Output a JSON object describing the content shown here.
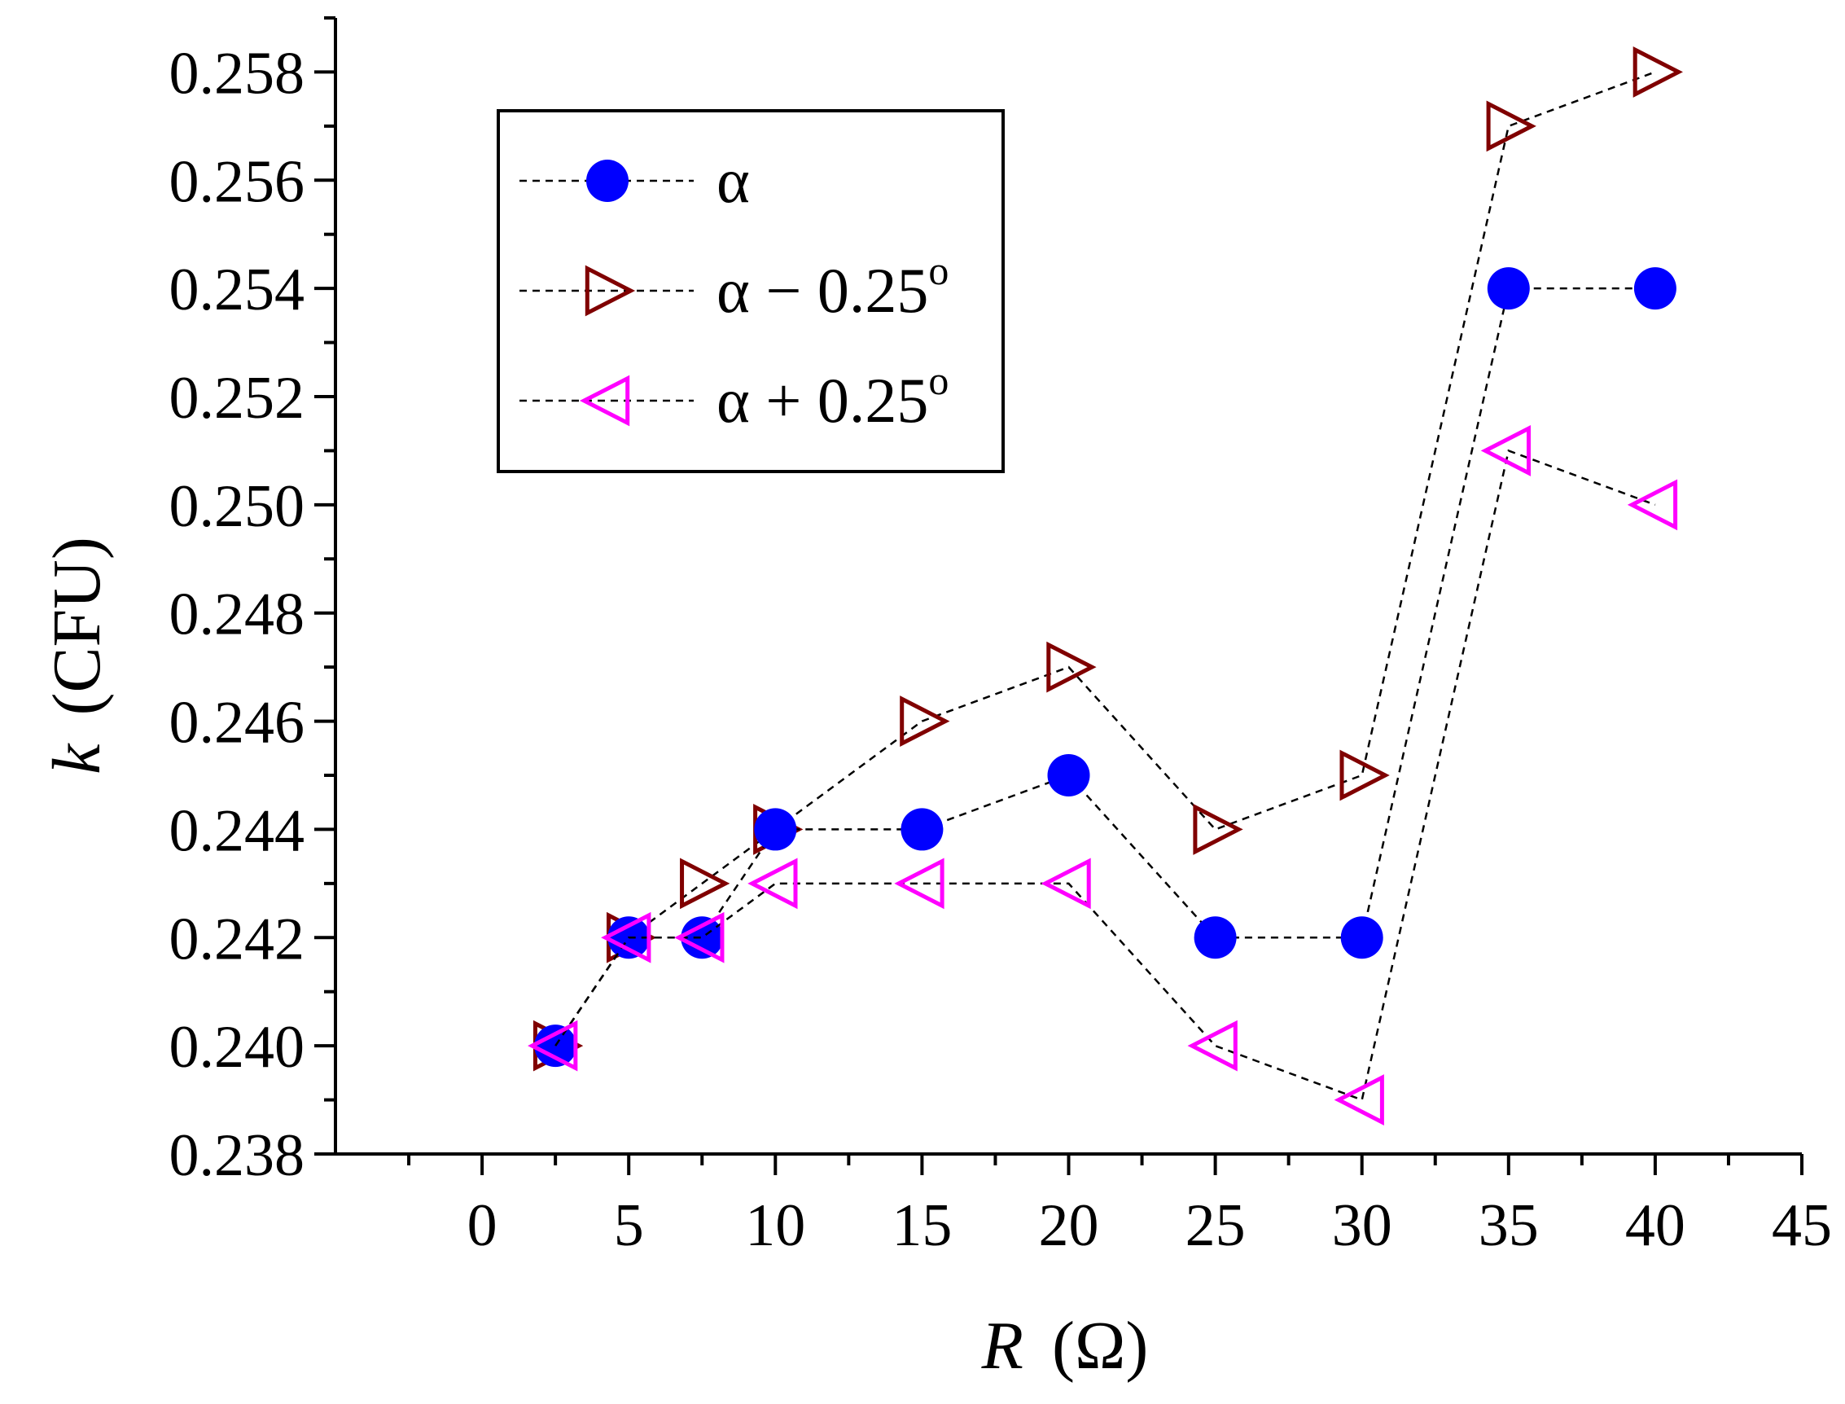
{
  "chart_data": {
    "type": "scatter",
    "xlabel_var": "R",
    "xlabel_unit": "(Ω)",
    "ylabel_var": "k",
    "ylabel_unit": "(CFU)",
    "xlim": [
      -5,
      45
    ],
    "ylim": [
      0.238,
      0.259
    ],
    "x_ticks": [
      "0",
      "5",
      "10",
      "15",
      "20",
      "25",
      "30",
      "35",
      "40",
      "45"
    ],
    "x_tick_values": [
      0,
      5,
      10,
      15,
      20,
      25,
      30,
      35,
      40,
      45
    ],
    "y_ticks": [
      "0.238",
      "0.240",
      "0.242",
      "0.244",
      "0.246",
      "0.248",
      "0.250",
      "0.252",
      "0.254",
      "0.256",
      "0.258"
    ],
    "y_tick_values": [
      0.238,
      0.24,
      0.242,
      0.244,
      0.246,
      0.248,
      0.25,
      0.252,
      0.254,
      0.256,
      0.258
    ],
    "legend_position": "top-left",
    "series": [
      {
        "name": "α",
        "marker": "filled-circle",
        "color": "#0000ff",
        "x": [
          2.5,
          5,
          7.5,
          10,
          15,
          20,
          25,
          30,
          35,
          40
        ],
        "y": [
          0.24,
          0.242,
          0.242,
          0.244,
          0.244,
          0.245,
          0.242,
          0.242,
          0.254,
          0.254
        ]
      },
      {
        "name": "α − 0.25",
        "suffix": "o",
        "marker": "open-triangle-right",
        "color": "#800000",
        "x": [
          2.5,
          5,
          7.5,
          10,
          15,
          20,
          25,
          30,
          35,
          40
        ],
        "y": [
          0.24,
          0.242,
          0.243,
          0.244,
          0.246,
          0.247,
          0.244,
          0.245,
          0.257,
          0.258
        ]
      },
      {
        "name": "α + 0.25",
        "suffix": "o",
        "marker": "open-triangle-left",
        "color": "#ff00ff",
        "x": [
          2.5,
          5,
          7.5,
          10,
          15,
          20,
          25,
          30,
          35,
          40
        ],
        "y": [
          0.24,
          0.242,
          0.242,
          0.243,
          0.243,
          0.243,
          0.24,
          0.239,
          0.251,
          0.25
        ]
      }
    ]
  }
}
